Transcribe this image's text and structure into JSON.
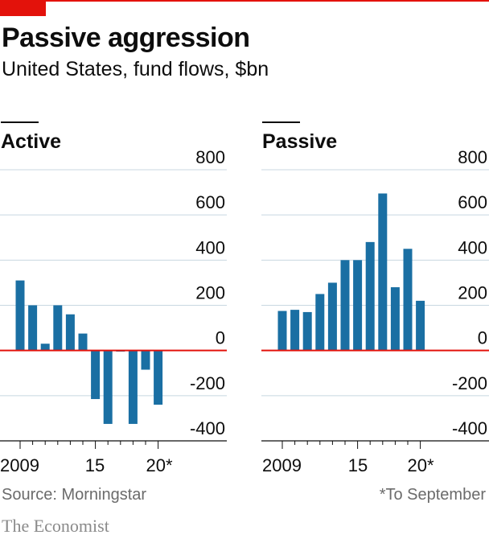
{
  "header": {
    "title": "Passive aggression",
    "subtitle": "United States, fund flows, $bn"
  },
  "footer": {
    "source": "Source: Morningstar",
    "note": "*To September",
    "brand": "The Economist"
  },
  "colors": {
    "bar": "#1a6fa3",
    "zero_line": "#e3120b",
    "grid": "#c8d7e1",
    "accent": "#e3120b"
  },
  "chart_data": [
    {
      "type": "bar",
      "title": "Active",
      "categories": [
        "2009",
        "2010",
        "2011",
        "2012",
        "2013",
        "2014",
        "2015",
        "2016",
        "2017",
        "2018",
        "2019",
        "2020*"
      ],
      "x_tick_labels": [
        "2009",
        "15",
        "20*"
      ],
      "values": [
        310,
        200,
        30,
        200,
        160,
        75,
        -215,
        -325,
        -5,
        -325,
        -85,
        -240
      ],
      "y_ticks": [
        "800",
        "600",
        "400",
        "200",
        "0",
        "-200",
        "-400"
      ],
      "ylim": [
        -400,
        800
      ],
      "grid": true
    },
    {
      "type": "bar",
      "title": "Passive",
      "categories": [
        "2009",
        "2010",
        "2011",
        "2012",
        "2013",
        "2014",
        "2015",
        "2016",
        "2017",
        "2018",
        "2019",
        "2020*"
      ],
      "x_tick_labels": [
        "2009",
        "15",
        "20*"
      ],
      "values": [
        175,
        180,
        170,
        250,
        300,
        400,
        400,
        480,
        695,
        280,
        450,
        220
      ],
      "y_ticks": [
        "800",
        "600",
        "400",
        "200",
        "0",
        "-200",
        "-400"
      ],
      "ylim": [
        -400,
        800
      ],
      "grid": true
    }
  ]
}
